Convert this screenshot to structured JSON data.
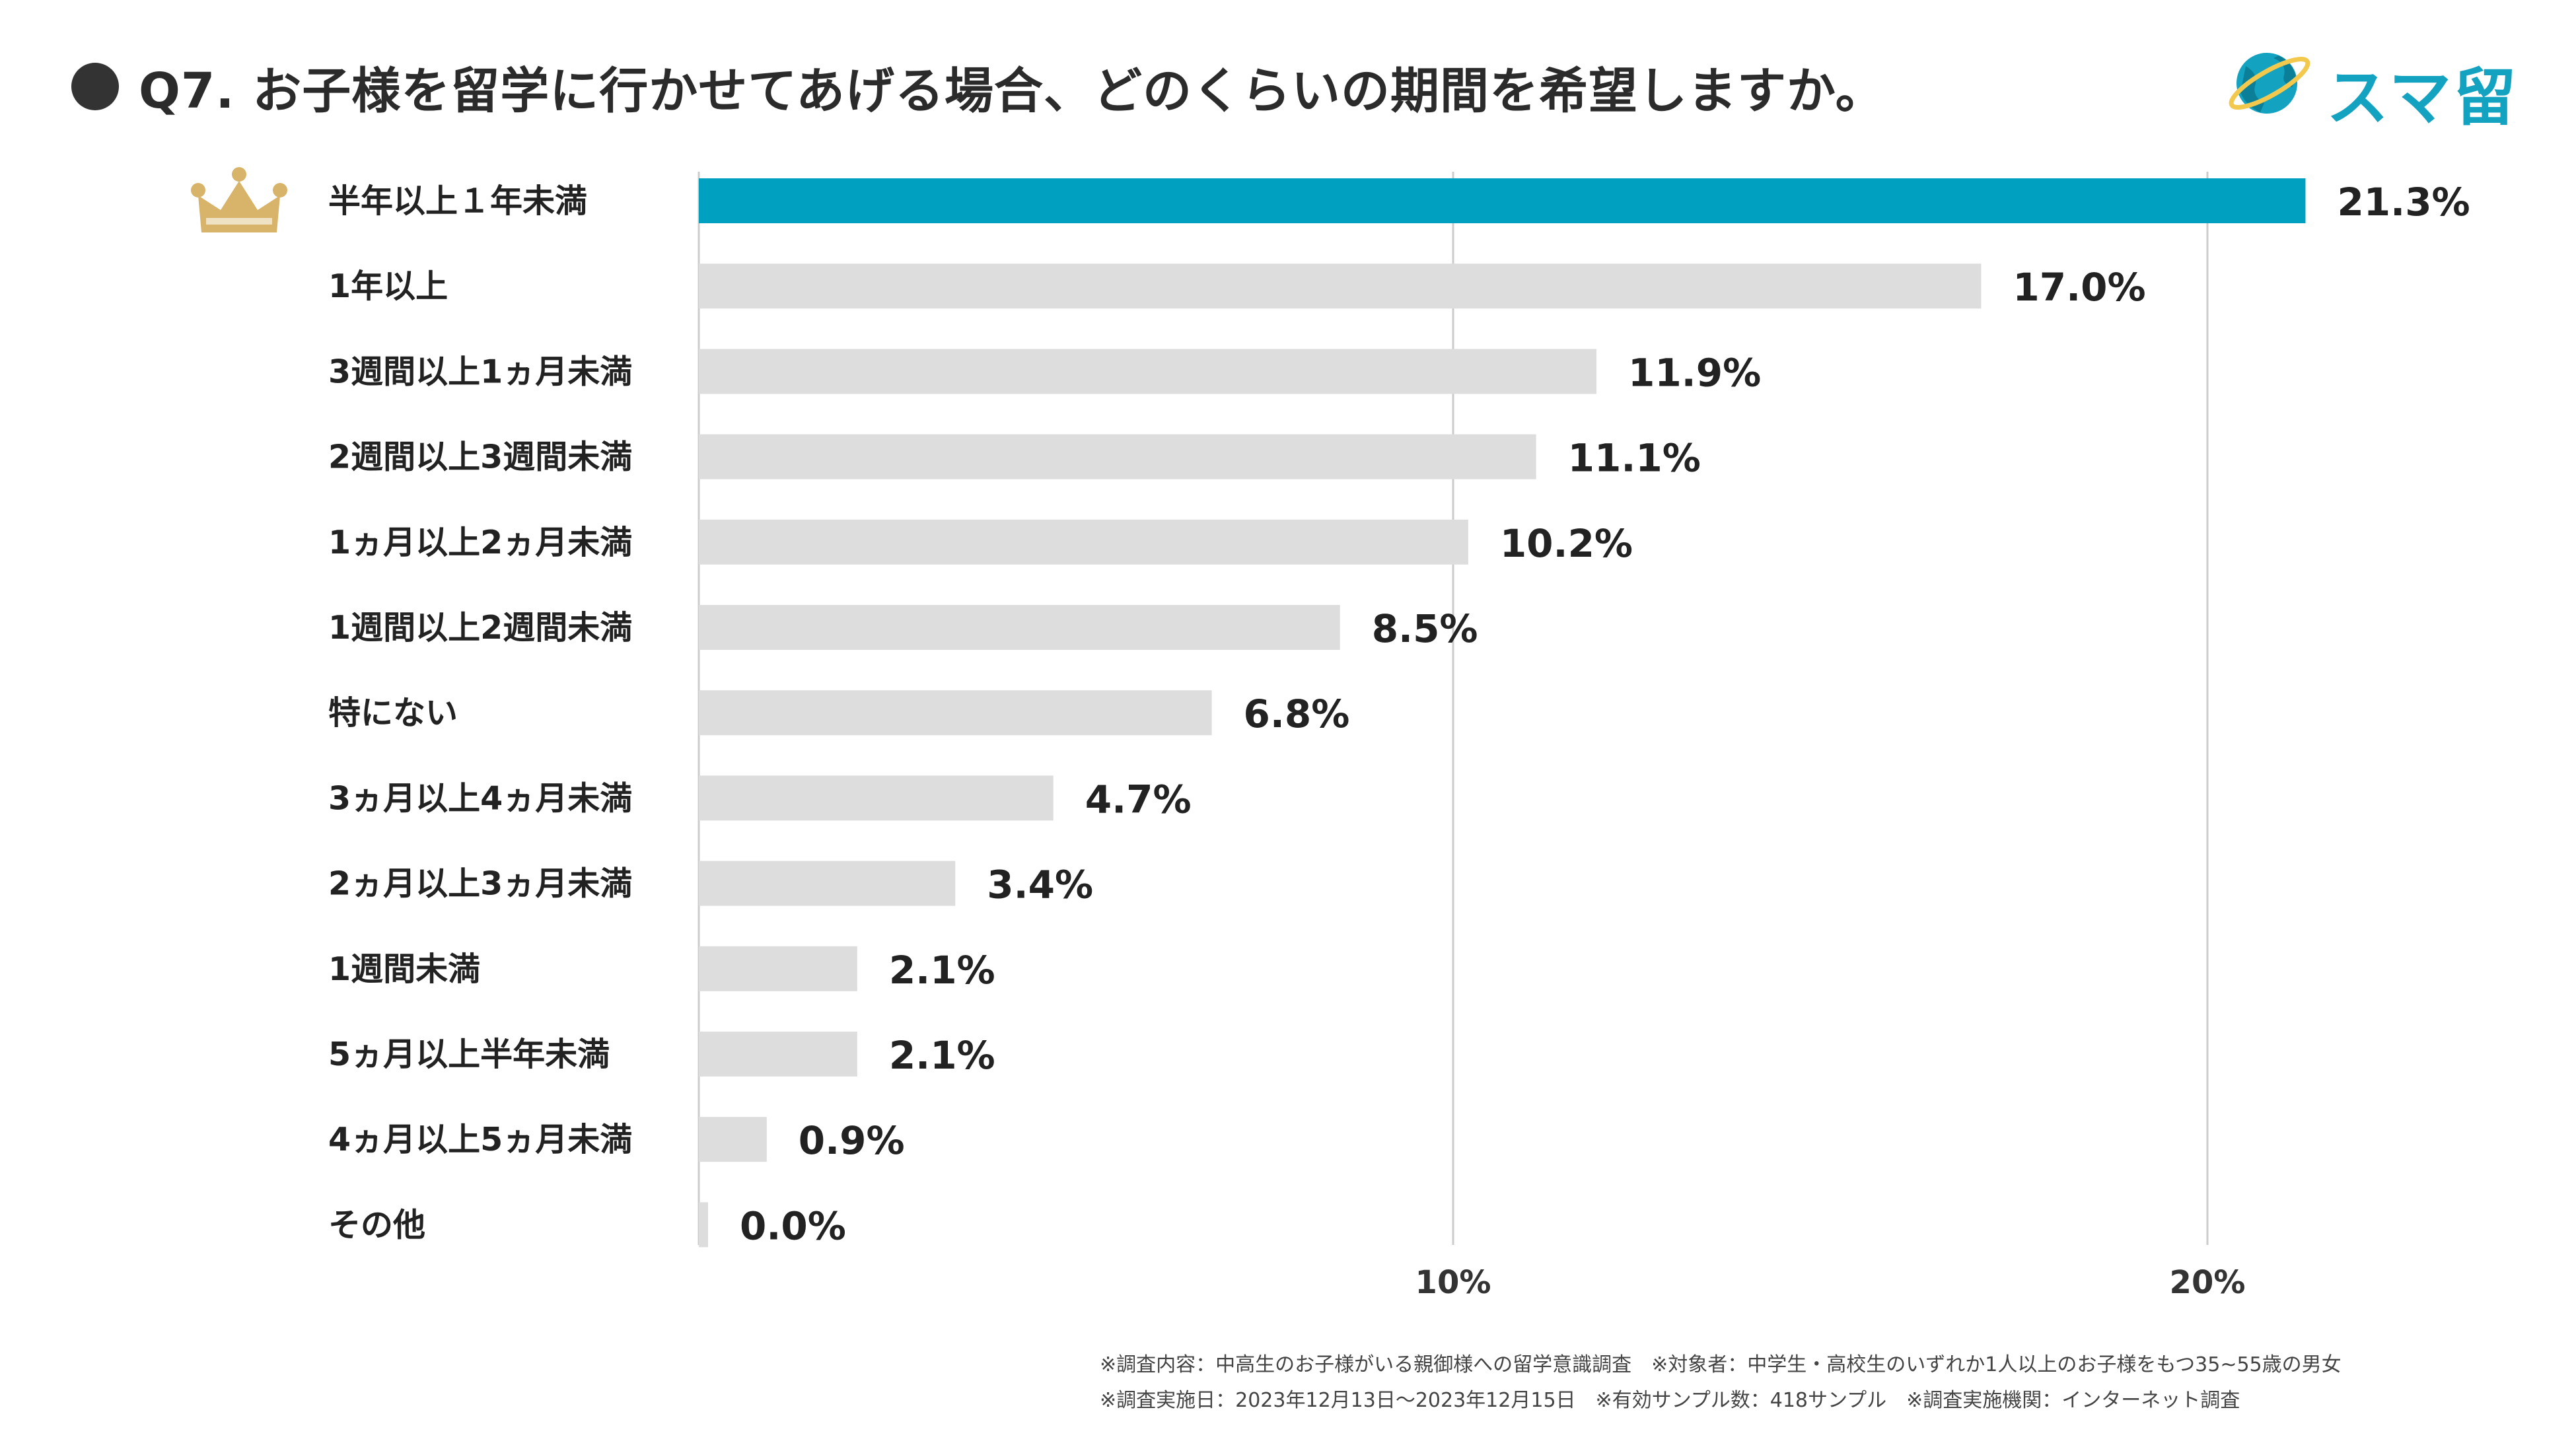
{
  "title": "Q7. お子様を留学に行かせてあげる場合、どのくらいの期間を希望しますか。",
  "logo": {
    "text": "スマ留",
    "icon": "globe-icon"
  },
  "colors": {
    "highlight": "#00a0c0",
    "bar": "#dddddd",
    "text": "#222222",
    "gridline": "#cccccc",
    "crown": "#d8b46a",
    "logo": "#13a2c0"
  },
  "chart_data": {
    "type": "bar",
    "orientation": "horizontal",
    "categories": [
      "半年以上１年未満",
      "1年以上",
      "3週間以上1ヵ月未満",
      "2週間以上3週間未満",
      "1ヵ月以上2ヵ月未満",
      "1週間以上2週間未満",
      "特にない",
      "3ヵ月以上4ヵ月未満",
      "2ヵ月以上3ヵ月未満",
      "1週間未満",
      "5ヵ月以上半年未満",
      "4ヵ月以上5ヵ月未満",
      "その他"
    ],
    "values": [
      21.3,
      17.0,
      11.9,
      11.1,
      10.2,
      8.5,
      6.8,
      4.7,
      3.4,
      2.1,
      2.1,
      0.9,
      0.0
    ],
    "value_labels": [
      "21.3%",
      "17.0%",
      "11.9%",
      "11.1%",
      "10.2%",
      "8.5%",
      "6.8%",
      "4.7%",
      "3.4%",
      "2.1%",
      "2.1%",
      "0.9%",
      "0.0%"
    ],
    "xlim": [
      0,
      21.3
    ],
    "x_ticks": [
      10,
      20
    ],
    "x_tick_labels": [
      "10%",
      "20%"
    ],
    "highlight_index": 0,
    "grid": true,
    "title": "Q7. お子様を留学に行かせてあげる場合、どのくらいの期間を希望しますか。"
  },
  "footnotes": [
    "※調査内容：中高生のお子様がいる親御様への留学意識調査　※対象者：中学生・高校生のいずれか1人以上のお子様をもつ35~55歳の男女",
    "※調査実施日：2023年12月13日～2023年12月15日　※有効サンプル数：418サンプル　※調査実施機関：インターネット調査"
  ]
}
